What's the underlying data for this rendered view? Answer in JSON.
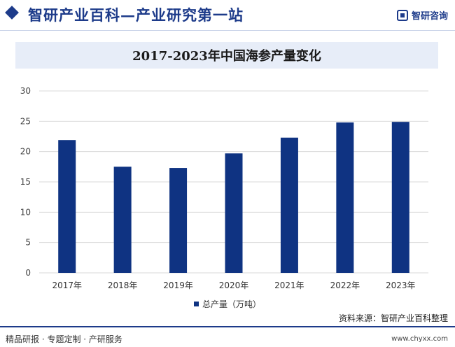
{
  "header": {
    "title": "智研产业百科—产业研究第一站",
    "logo_text": "智研咨询"
  },
  "chart_data": {
    "type": "bar",
    "title": "2017-2023年中国海参产量变化",
    "categories": [
      "2017年",
      "2018年",
      "2019年",
      "2020年",
      "2021年",
      "2022年",
      "2023年"
    ],
    "series": [
      {
        "name": "总产量（万吨）",
        "values": [
          21.9,
          17.5,
          17.3,
          19.7,
          22.3,
          24.8,
          24.9
        ],
        "color": "#0f3382"
      }
    ],
    "xlabel": "",
    "ylabel": "",
    "ylim": [
      0,
      30
    ],
    "yticks": [
      0,
      5,
      10,
      15,
      20,
      25,
      30
    ],
    "grid": true,
    "legend_position": "bottom"
  },
  "source": "资料来源：智研产业百科整理",
  "footer": {
    "left": "精品研报 · 专题定制 · 产研服务",
    "right": "www.chyxx.com"
  }
}
